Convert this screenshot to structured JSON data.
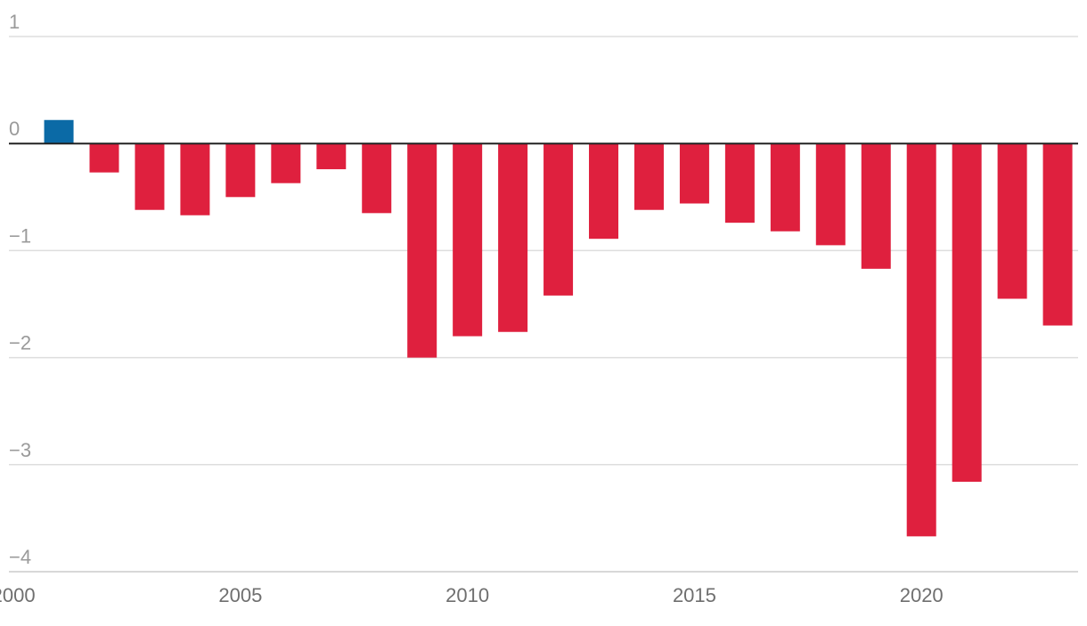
{
  "chart_data": {
    "type": "bar",
    "title": "",
    "xlabel": "",
    "ylabel": "",
    "categories": [
      2001,
      2002,
      2003,
      2004,
      2005,
      2006,
      2007,
      2008,
      2009,
      2010,
      2011,
      2012,
      2013,
      2014,
      2015,
      2016,
      2017,
      2018,
      2019,
      2020,
      2021,
      2022,
      2023
    ],
    "values": [
      0.22,
      -0.27,
      -0.62,
      -0.67,
      -0.5,
      -0.37,
      -0.24,
      -0.65,
      -2.0,
      -1.8,
      -1.76,
      -1.42,
      -0.89,
      -0.62,
      -0.56,
      -0.74,
      -0.82,
      -0.95,
      -1.17,
      -3.67,
      -3.16,
      -1.45,
      -1.7
    ],
    "ylim": [
      -4,
      1
    ],
    "yticks": [
      {
        "value": 1,
        "label": "1"
      },
      {
        "value": 0,
        "label": "0"
      },
      {
        "value": -1,
        "label": "−1"
      },
      {
        "value": -2,
        "label": "−2"
      },
      {
        "value": -3,
        "label": "−3"
      },
      {
        "value": -4,
        "label": "−4"
      }
    ],
    "xticks": [
      {
        "value": 2000,
        "label": "2000"
      },
      {
        "value": 2005,
        "label": "2005"
      },
      {
        "value": 2010,
        "label": "2010"
      },
      {
        "value": 2015,
        "label": "2015"
      },
      {
        "value": 2020,
        "label": "2020"
      }
    ],
    "xlim": [
      1999.9,
      2023.45
    ],
    "colors": {
      "positive": "#0b6aa6",
      "negative": "#df203e"
    },
    "grid": true,
    "legend": "none"
  }
}
